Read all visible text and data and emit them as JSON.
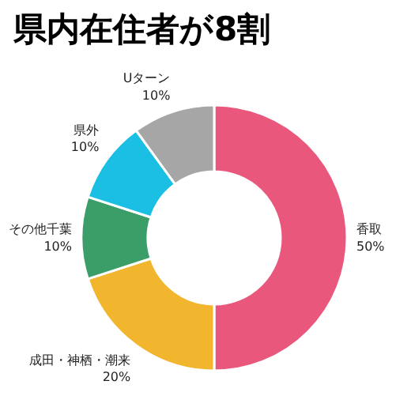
{
  "chart_data": {
    "type": "donut",
    "title": "県内在住者が8割",
    "categories": [
      "香取",
      "成田・神栖・潮来",
      "その他千葉",
      "県外",
      "Uターン"
    ],
    "values": [
      50,
      20,
      10,
      10,
      10
    ],
    "value_labels": [
      "50%",
      "20%",
      "10%",
      "10%",
      "10%"
    ],
    "colors": [
      "#e9587c",
      "#f2b52e",
      "#3b9e68",
      "#1bbfe3",
      "#a6a6a6"
    ]
  }
}
